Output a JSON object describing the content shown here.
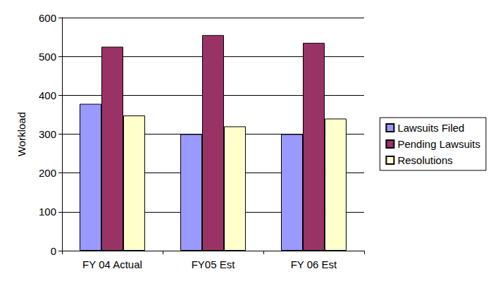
{
  "chart_data": {
    "type": "bar",
    "categories": [
      "FY 04 Actual",
      "FY05 Est",
      "FY 06 Est"
    ],
    "series": [
      {
        "name": "Lawsuits Filed",
        "color": "#9999ff",
        "values": [
          378,
          300,
          300
        ]
      },
      {
        "name": "Pending Lawsuits",
        "color": "#993366",
        "values": [
          525,
          555,
          535
        ]
      },
      {
        "name": "Resolutions",
        "color": "#ffffcc",
        "values": [
          348,
          320,
          340
        ]
      }
    ],
    "y_label": "Workload",
    "ylim": [
      0,
      600
    ],
    "yticks": [
      0,
      100,
      200,
      300,
      400,
      500,
      600
    ],
    "grid": true,
    "legend": "right"
  }
}
